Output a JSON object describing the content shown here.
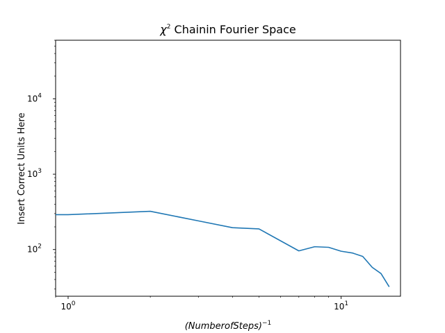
{
  "chart_data": {
    "type": "line",
    "title": {
      "symbol": "χ",
      "symbol_exponent": "2",
      "text": " Chainin Fourier Space"
    },
    "xlabel": {
      "text": "(NumberofSteps)",
      "exponent": "−1"
    },
    "ylabel": "Insert Correct Units Here",
    "xscale": "log",
    "yscale": "log",
    "xlim": [
      0.9,
      16.5
    ],
    "ylim": [
      24,
      60000
    ],
    "grid": false,
    "x_ticks": [
      {
        "value": 1,
        "base": "10",
        "exponent": "0"
      },
      {
        "value": 10,
        "base": "10",
        "exponent": "1"
      }
    ],
    "y_ticks": [
      {
        "value": 100,
        "base": "10",
        "exponent": "2"
      },
      {
        "value": 1000,
        "base": "10",
        "exponent": "3"
      },
      {
        "value": 10000,
        "base": "10",
        "exponent": "4"
      }
    ],
    "series": [
      {
        "color": "#1f77b4",
        "x": [
          0.5,
          1,
          2,
          3,
          4,
          5,
          7,
          8,
          9,
          10,
          11,
          12,
          13,
          14,
          15
        ],
        "y": [
          290,
          290,
          322,
          240,
          195,
          188,
          96,
          109,
          107,
          95,
          90,
          81,
          58,
          48,
          32
        ]
      }
    ]
  }
}
